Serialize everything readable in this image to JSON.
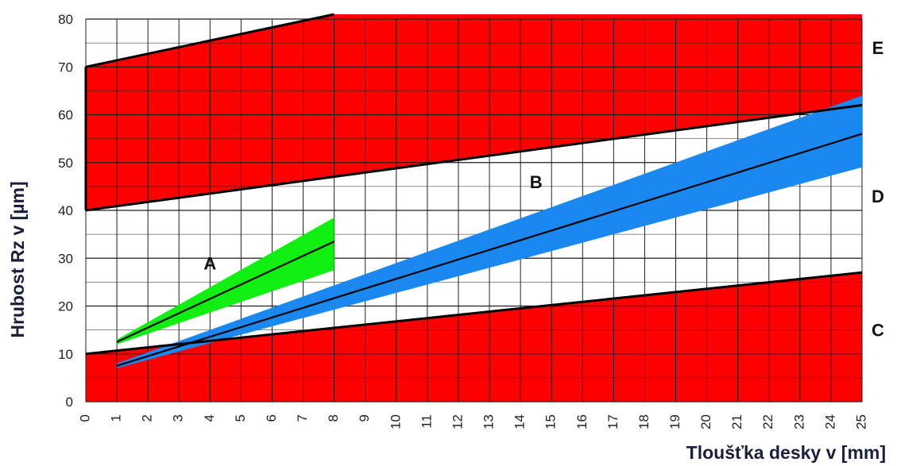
{
  "chart_data": {
    "type": "area",
    "xlabel": "Tloušťka desky v [mm]",
    "ylabel": "Hrubost Rz v [µm]",
    "xlim": [
      0,
      25
    ],
    "ylim": [
      0,
      80
    ],
    "x_ticks": [
      "0",
      "1",
      "2",
      "3",
      "4",
      "5",
      "6",
      "7",
      "8",
      "9",
      "10",
      "11",
      "12",
      "13",
      "14",
      "15",
      "16",
      "17",
      "18",
      "19",
      "20",
      "21",
      "22",
      "23",
      "24",
      "25"
    ],
    "y_ticks": [
      "0",
      "10",
      "20",
      "30",
      "40",
      "50",
      "60",
      "70",
      "80"
    ],
    "grid": true,
    "colors": {
      "zone_red": "#ff0000",
      "band_green": "#11ee11",
      "band_blue": "#1b88f0",
      "line": "#000000",
      "grid": "#1e1e1e"
    },
    "zones": [
      {
        "label": "C",
        "lower": [
          [
            0,
            0
          ],
          [
            25,
            0
          ]
        ],
        "upper": [
          [
            0,
            10
          ],
          [
            25,
            27
          ]
        ],
        "label_y": 15
      },
      {
        "label": "D",
        "lower": [
          [
            0,
            10
          ],
          [
            25,
            27
          ]
        ],
        "upper": [
          [
            0,
            40
          ],
          [
            25,
            62
          ]
        ],
        "label_y": 43
      },
      {
        "label": "E",
        "lower": [
          [
            0,
            40
          ],
          [
            25,
            62
          ]
        ],
        "upper": [
          [
            0,
            70
          ],
          [
            8,
            81
          ],
          [
            25,
            81
          ]
        ],
        "label_y": 74
      }
    ],
    "bands": [
      {
        "label": "A",
        "color": "#11ee11",
        "center": [
          [
            1,
            12.5
          ],
          [
            8,
            33.5
          ]
        ],
        "lower": [
          [
            1,
            12
          ],
          [
            8,
            27.5
          ]
        ],
        "upper": [
          [
            1,
            13
          ],
          [
            8,
            38.5
          ]
        ],
        "label_point": [
          4,
          29
        ]
      },
      {
        "label": "B",
        "color": "#1b88f0",
        "center": [
          [
            1,
            7.5
          ],
          [
            25,
            56
          ]
        ],
        "lower": [
          [
            1,
            7
          ],
          [
            25,
            49
          ]
        ],
        "upper": [
          [
            1,
            8
          ],
          [
            25,
            64
          ]
        ],
        "label_point": [
          14.5,
          46
        ]
      }
    ]
  }
}
